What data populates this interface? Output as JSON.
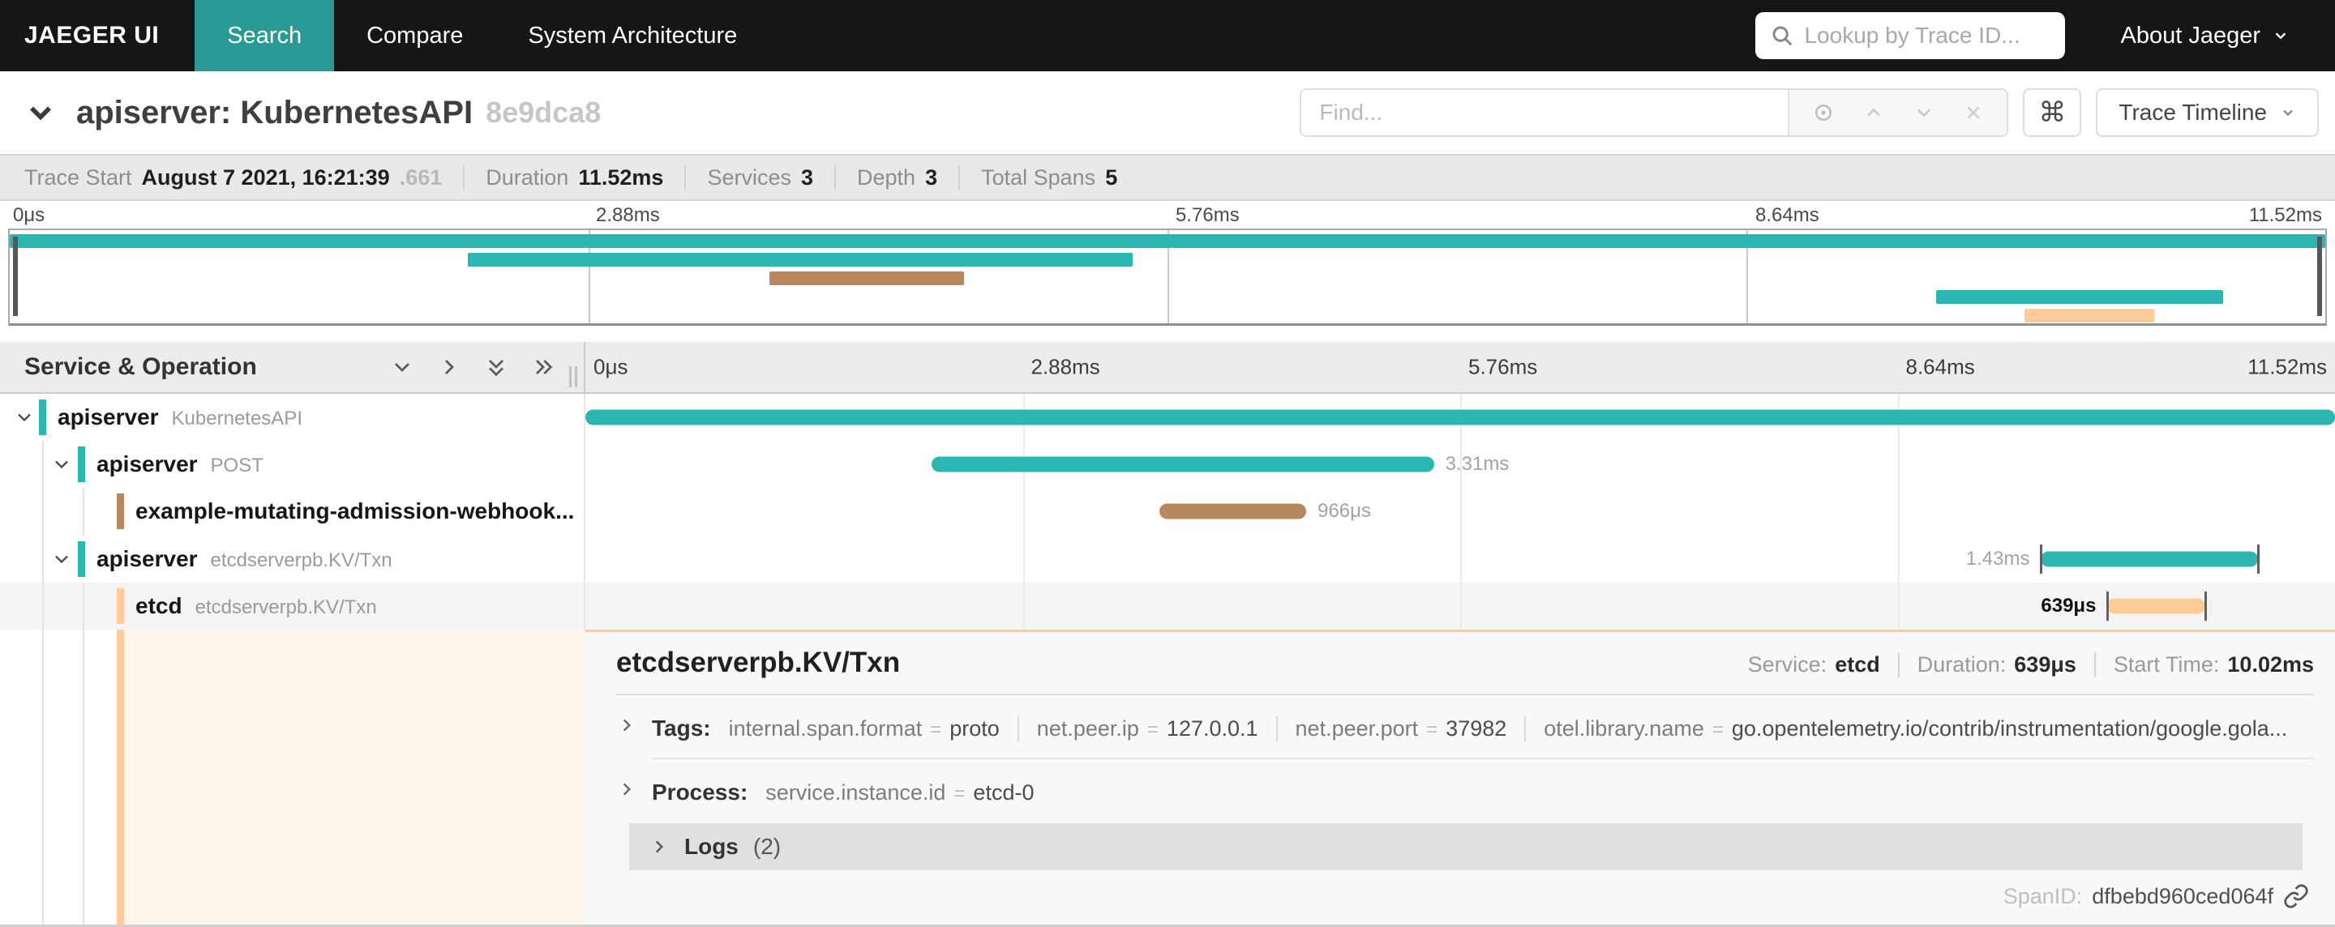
{
  "colors": {
    "nav_bg": "#161616",
    "active_tab_teal": "#2a9a96",
    "span_teal": "#2cb6b2",
    "span_brown": "#b7885e",
    "span_peach": "#ffcb99",
    "selected_row_bg": "#f4f4f4",
    "detail_left_cream": "#fff7ee"
  },
  "nav": {
    "brand": "JAEGER UI",
    "tabs": [
      {
        "label": "Search",
        "active": true
      },
      {
        "label": "Compare",
        "active": false
      },
      {
        "label": "System Architecture",
        "active": false
      }
    ],
    "lookup_placeholder": "Lookup by Trace ID...",
    "about_label": "About Jaeger"
  },
  "trace_header": {
    "title_service": "apiserver: KubernetesAPI",
    "trace_id": "8e9dca8",
    "find_placeholder": "Find...",
    "shortcut": "⌘",
    "view_selector": "Trace Timeline"
  },
  "stats": {
    "items": [
      {
        "label": "Trace Start",
        "value": "August 7 2021, 16:21:39",
        "muted_suffix": ".661"
      },
      {
        "label": "Duration",
        "value": "11.52ms",
        "muted_suffix": ""
      },
      {
        "label": "Services",
        "value": "3",
        "muted_suffix": ""
      },
      {
        "label": "Depth",
        "value": "3",
        "muted_suffix": ""
      },
      {
        "label": "Total Spans",
        "value": "5",
        "muted_suffix": ""
      }
    ]
  },
  "timeline": {
    "left_header": "Service & Operation",
    "ticks": [
      "0μs",
      "2.88ms",
      "5.76ms",
      "8.64ms",
      "11.52ms"
    ],
    "tick_positions_pct": [
      0,
      25,
      50,
      75,
      100
    ],
    "total_duration": "11.52ms"
  },
  "minimap": {
    "bars": [
      {
        "service": "apiserver",
        "color": "#2cb6b2",
        "left_pct": 0,
        "width_pct": 100
      },
      {
        "service": "apiserver",
        "color": "#2cb6b2",
        "left_pct": 19.8,
        "width_pct": 28.7
      },
      {
        "service": "example-mutating-admission-webhook",
        "color": "#b7885e",
        "left_pct": 32.8,
        "width_pct": 8.4
      },
      {
        "service": "apiserver",
        "color": "#2cb6b2",
        "left_pct": 83.2,
        "width_pct": 12.4
      },
      {
        "service": "etcd",
        "color": "#ffcb99",
        "left_pct": 87.0,
        "width_pct": 5.6
      }
    ]
  },
  "spans": [
    {
      "service": "apiserver",
      "operation": "KubernetesAPI",
      "level": 0,
      "has_children": true,
      "color": "#2cb6b2",
      "bar_left_pct": 0,
      "bar_width_pct": 100,
      "duration_label": "",
      "label_side": "none",
      "selected": false,
      "guides": [],
      "end_ticks": false,
      "label_dark": false
    },
    {
      "service": "apiserver",
      "operation": "POST",
      "level": 1,
      "has_children": true,
      "color": "#2cb6b2",
      "bar_left_pct": 19.8,
      "bar_width_pct": 28.7,
      "duration_label": "3.31ms",
      "label_side": "right",
      "selected": false,
      "guides": [
        52
      ],
      "end_ticks": false,
      "label_dark": false
    },
    {
      "service": "example-mutating-admission-webhook...",
      "operation": "",
      "level": 2,
      "has_children": false,
      "color": "#b7885e",
      "bar_left_pct": 32.8,
      "bar_width_pct": 8.4,
      "duration_label": "966μs",
      "label_side": "right",
      "selected": false,
      "guides": [
        52,
        102
      ],
      "end_ticks": false,
      "label_dark": false
    },
    {
      "service": "apiserver",
      "operation": "etcdserverpb.KV/Txn",
      "level": 1,
      "has_children": true,
      "color": "#2cb6b2",
      "bar_left_pct": 83.2,
      "bar_width_pct": 12.4,
      "duration_label": "1.43ms",
      "label_side": "left",
      "selected": false,
      "guides": [
        52
      ],
      "end_ticks": true,
      "label_dark": false
    },
    {
      "service": "etcd",
      "operation": "etcdserverpb.KV/Txn",
      "level": 2,
      "has_children": false,
      "color": "#ffcb99",
      "bar_left_pct": 87.0,
      "bar_width_pct": 5.6,
      "duration_label": "639μs",
      "label_side": "left",
      "selected": true,
      "guides": [
        52,
        102
      ],
      "end_ticks": true,
      "label_dark": true
    }
  ],
  "detail": {
    "title": "etcdserverpb.KV/Txn",
    "accent_color": "#ffcb99",
    "meta": [
      {
        "label": "Service:",
        "value": "etcd"
      },
      {
        "label": "Duration:",
        "value": "639μs"
      },
      {
        "label": "Start Time:",
        "value": "10.02ms"
      }
    ],
    "tags_label": "Tags:",
    "tags": [
      {
        "key": "internal.span.format",
        "value": "proto"
      },
      {
        "key": "net.peer.ip",
        "value": "127.0.0.1"
      },
      {
        "key": "net.peer.port",
        "value": "37982"
      },
      {
        "key": "otel.library.name",
        "value": "go.opentelemetry.io/contrib/instrumentation/google.gola..."
      }
    ],
    "process_label": "Process:",
    "process": [
      {
        "key": "service.instance.id",
        "value": "etcd-0"
      }
    ],
    "logs_label": "Logs",
    "logs_count": "(2)",
    "span_id_label": "SpanID:",
    "span_id": "dfbebd960ced064f",
    "guides": [
      52,
      102
    ]
  }
}
